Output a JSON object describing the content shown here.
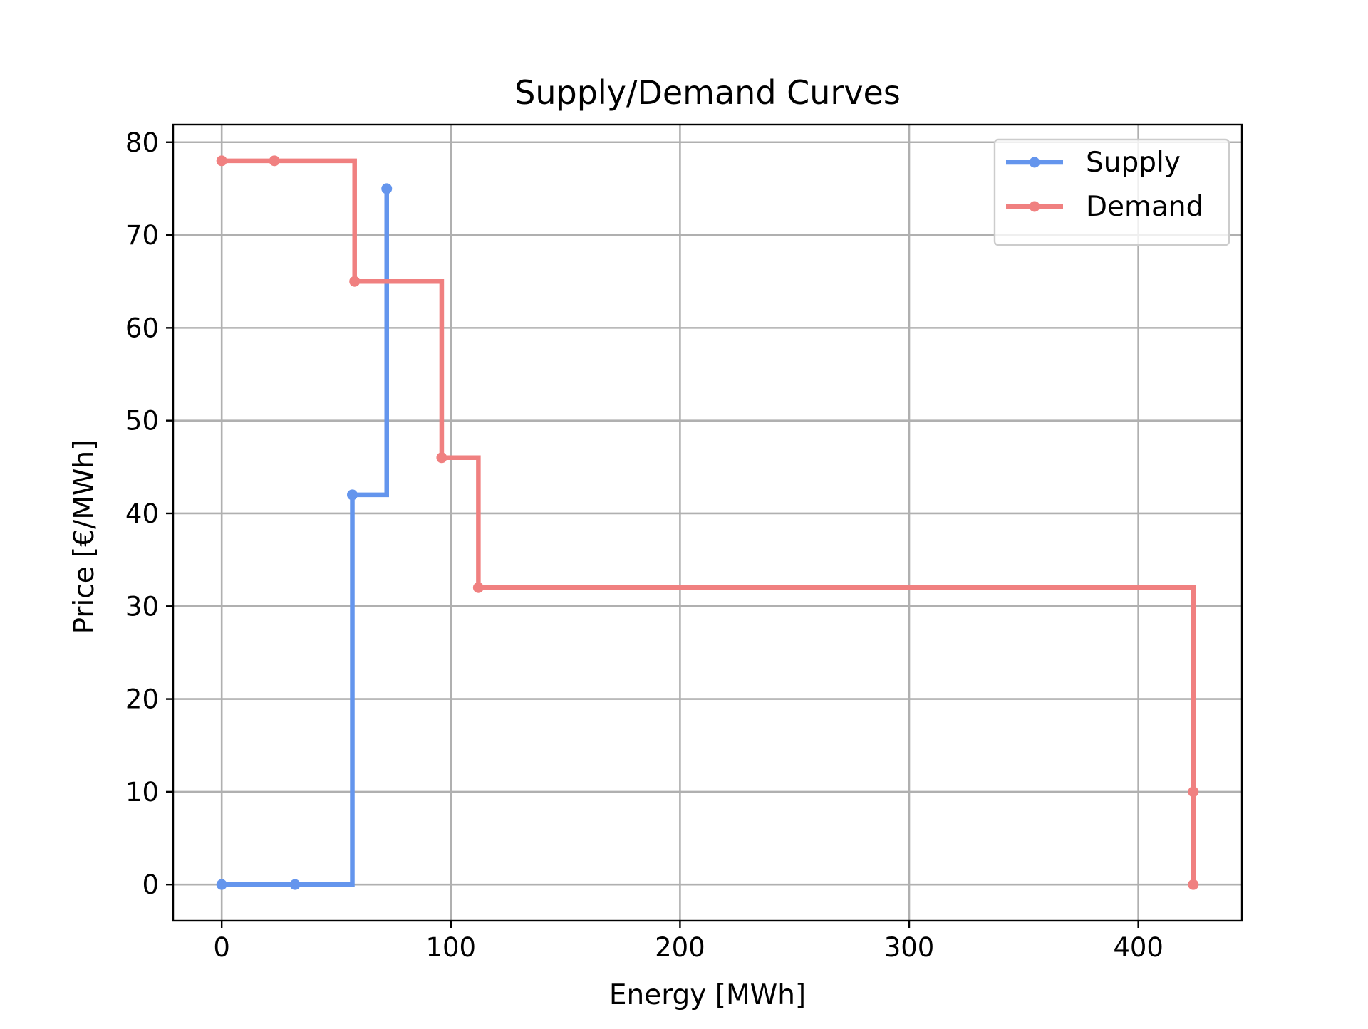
{
  "chart_data": {
    "type": "line",
    "step": "post",
    "title": "Supply/Demand Curves",
    "xlabel": "Energy [MWh]",
    "ylabel": "Price [€/MWh]",
    "xlim": [
      -21.2,
      445.2
    ],
    "ylim": [
      -3.9,
      81.9
    ],
    "xticks": [
      "0",
      "100",
      "200",
      "300",
      "400"
    ],
    "yticks": [
      "0",
      "10",
      "20",
      "30",
      "40",
      "50",
      "60",
      "70",
      "80"
    ],
    "grid": true,
    "legend_position": "upper right",
    "series": [
      {
        "name": "Supply",
        "color": "#6495ED",
        "points": [
          [
            0,
            0
          ],
          [
            32,
            0
          ],
          [
            57,
            42
          ],
          [
            72,
            75
          ]
        ]
      },
      {
        "name": "Demand",
        "color": "#F08080",
        "points": [
          [
            0,
            78
          ],
          [
            23,
            78
          ],
          [
            58,
            65
          ],
          [
            96,
            46
          ],
          [
            112,
            32
          ],
          [
            424,
            10
          ],
          [
            424,
            0
          ]
        ]
      }
    ]
  }
}
